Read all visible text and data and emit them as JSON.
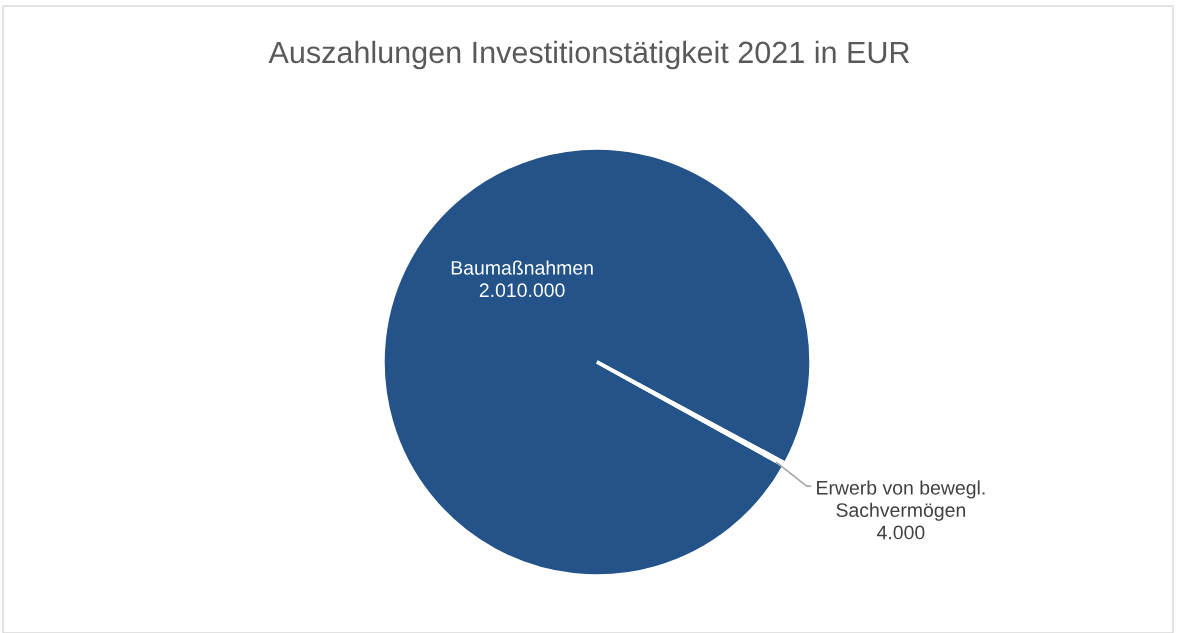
{
  "chart_data": {
    "type": "pie",
    "title": "Auszahlungen Investitionstätigkeit 2021 in EUR",
    "categories": [
      "Baumaßnahmen",
      "Erwerb von bewegl.\nSachvermögen"
    ],
    "values": [
      2010000,
      4000
    ],
    "colors": [
      "#235389",
      "#ffffff"
    ],
    "value_labels": [
      "2.010.000",
      "4.000"
    ],
    "legend": false
  }
}
